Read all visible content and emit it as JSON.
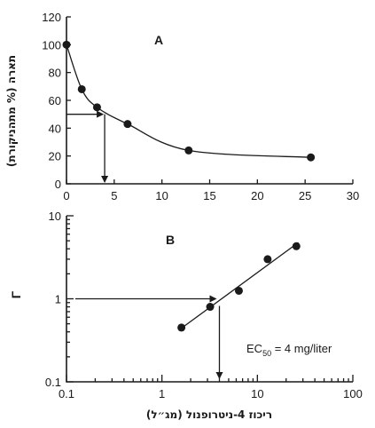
{
  "chart_data": [
    {
      "type": "scatter",
      "panel_label": "A",
      "ylabel": "תארה (% מתהניקורת)",
      "xlim": [
        0,
        30
      ],
      "ylim": [
        0,
        120
      ],
      "xticks": [
        0,
        5,
        10,
        15,
        20,
        25,
        30
      ],
      "yticks": [
        0,
        20,
        40,
        60,
        80,
        100,
        120
      ],
      "x": [
        0,
        1.6,
        3.2,
        6.4,
        12.8,
        25.6
      ],
      "y": [
        100,
        68,
        55,
        43,
        24,
        19
      ],
      "fit_curve": true,
      "guide_y": 50,
      "guide_x": 4,
      "grid": false
    },
    {
      "type": "scatter",
      "panel_label": "B",
      "ylabel": "Γ",
      "xlabel": "ריכוז 4-ניטרופנול (מג״ל)",
      "xscale": "log",
      "yscale": "log",
      "xlim": [
        0.1,
        100
      ],
      "ylim": [
        0.1,
        10
      ],
      "xticks": [
        "0.1",
        "1",
        "10",
        "100"
      ],
      "yticks": [
        "0.1",
        "1",
        "10"
      ],
      "x": [
        1.6,
        3.2,
        6.4,
        12.8,
        25.6
      ],
      "y": [
        0.45,
        0.8,
        1.25,
        3.0,
        4.3
      ],
      "fit_line": true,
      "guide_y": 1,
      "guide_x": 4,
      "annotation_main": "EC",
      "annotation_sub": "50",
      "annotation_rest": " = 4 mg/liter",
      "grid": false
    }
  ]
}
